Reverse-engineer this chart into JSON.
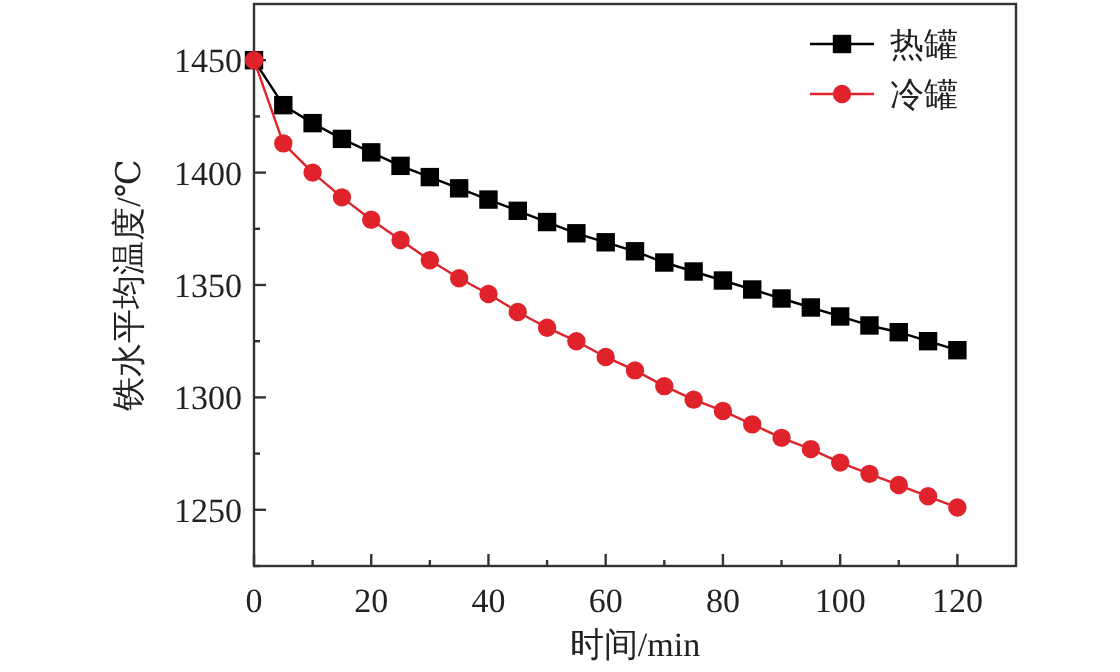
{
  "chart_data": {
    "type": "line",
    "xlabel": "时间/min",
    "ylabel": "铁水平均温度/℃",
    "x": [
      0,
      5,
      10,
      15,
      20,
      25,
      30,
      35,
      40,
      45,
      50,
      55,
      60,
      65,
      70,
      75,
      80,
      85,
      90,
      95,
      100,
      105,
      110,
      115,
      120
    ],
    "series": [
      {
        "name": "热罐",
        "color": "#000000",
        "marker": "square",
        "values": [
          1450,
          1430,
          1422,
          1415,
          1409,
          1403,
          1398,
          1393,
          1388,
          1383,
          1378,
          1373,
          1369,
          1365,
          1360,
          1356,
          1352,
          1348,
          1344,
          1340,
          1336,
          1332,
          1329,
          1325,
          1321
        ]
      },
      {
        "name": "冷罐",
        "color": "#e0232b",
        "marker": "circle",
        "values": [
          1450,
          1413,
          1400,
          1389,
          1379,
          1370,
          1361,
          1353,
          1346,
          1338,
          1331,
          1325,
          1318,
          1312,
          1305,
          1299,
          1294,
          1288,
          1282,
          1277,
          1271,
          1266,
          1261,
          1256,
          1251
        ]
      }
    ],
    "xlim": [
      0,
      130
    ],
    "ylim": [
      1225,
      1475
    ],
    "xticks": [
      0,
      {
        "value": 10,
        "label": null
      },
      20,
      {
        "value": 30,
        "label": null
      },
      40,
      {
        "value": 50,
        "label": null
      },
      60,
      {
        "value": 70,
        "label": null
      },
      80,
      {
        "value": 90,
        "label": null
      },
      100,
      {
        "value": 110,
        "label": null
      },
      120
    ],
    "yticks": [
      {
        "value": 1225,
        "label": null
      },
      1250,
      {
        "value": 1275,
        "label": null
      },
      1300,
      {
        "value": 1325,
        "label": null
      },
      1350,
      {
        "value": 1375,
        "label": null
      },
      1400,
      {
        "value": 1425,
        "label": null
      },
      1450
    ],
    "grid": false,
    "legend": "top right",
    "line_style": "solid"
  }
}
